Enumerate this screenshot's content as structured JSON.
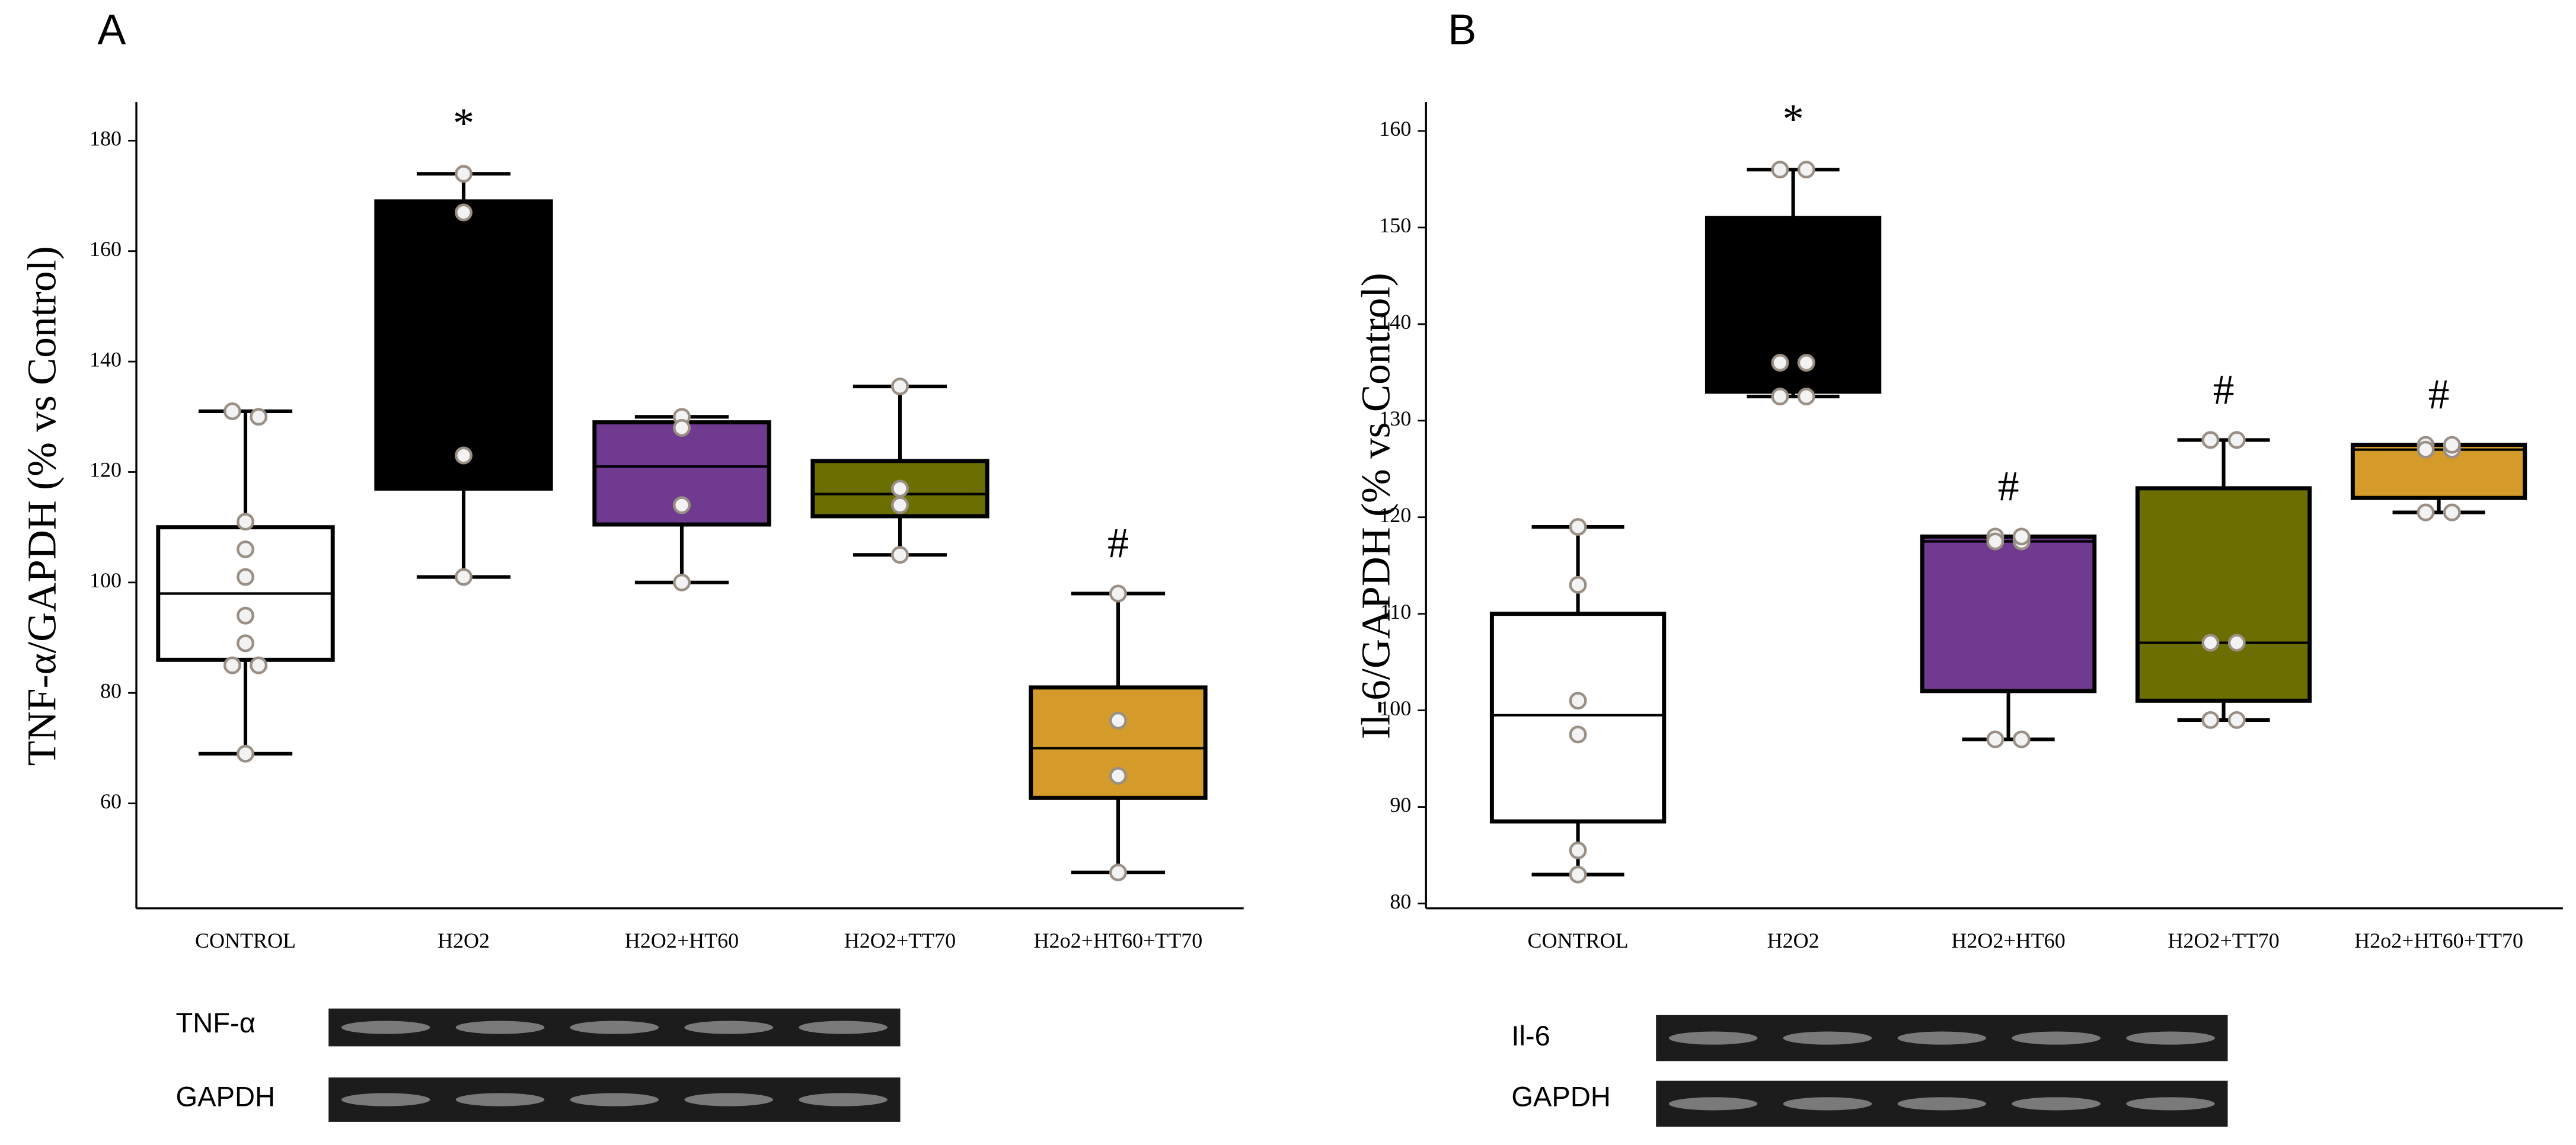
{
  "chart_data": [
    {
      "type": "box",
      "panel": "A",
      "ylabel": "TNF-α/GAPDH (% vs Control)",
      "categories": [
        "CONTROL",
        "H2O2",
        "H2O2+HT60",
        "H2O2+TT70",
        "H2o2+HT60+TT70"
      ],
      "colors": [
        "#ffffff",
        "#000000",
        "#6f3a8f",
        "#6b6e00",
        "#d49a2a"
      ],
      "boxes": [
        {
          "whislo": 69,
          "q1": 86,
          "med": 98,
          "q3": 110,
          "whishi": 131,
          "points": [
            131,
            130,
            111,
            106,
            101,
            94,
            89,
            85,
            85,
            69
          ]
        },
        {
          "whislo": 101,
          "q1": 117,
          "med": 145,
          "q3": 169,
          "whishi": 174,
          "points": [
            174,
            167,
            123,
            101
          ]
        },
        {
          "whislo": 100,
          "q1": 110.5,
          "med": 121,
          "q3": 129,
          "whishi": 130,
          "points": [
            130,
            128,
            114,
            100
          ]
        },
        {
          "whislo": 105,
          "q1": 112,
          "med": 116,
          "q3": 122,
          "whishi": 135.5,
          "points": [
            135.5,
            117,
            114,
            105
          ]
        },
        {
          "whislo": 47.5,
          "q1": 61,
          "med": 70,
          "q3": 81,
          "whishi": 98,
          "points": [
            98,
            75,
            65,
            47.5
          ]
        }
      ],
      "annotations": [
        null,
        "*",
        null,
        null,
        "#"
      ],
      "ylim": [
        41,
        187
      ],
      "yticks": [
        60,
        80,
        100,
        120,
        140,
        160,
        180
      ],
      "blot_labels": [
        "TNF-α",
        "GAPDH"
      ]
    },
    {
      "type": "box",
      "panel": "B",
      "ylabel": "Il-6/GAPDH (% vs Control)",
      "categories": [
        "CONTROL",
        "H2O2",
        "H2O2+HT60",
        "H2O2+TT70",
        "H2o2+HT60+TT70"
      ],
      "colors": [
        "#ffffff",
        "#000000",
        "#6f3a8f",
        "#6b6e00",
        "#d49a2a"
      ],
      "boxes": [
        {
          "whislo": 83,
          "q1": 88.5,
          "med": 99.5,
          "q3": 110,
          "whishi": 119,
          "points": [
            119,
            113,
            101,
            97.5,
            85.5,
            83
          ]
        },
        {
          "whislo": 132.5,
          "q1": 133,
          "med": 133,
          "q3": 151,
          "whishi": 156,
          "points": [
            156,
            156,
            136,
            136,
            132.5,
            132.5
          ]
        },
        {
          "whislo": 97,
          "q1": 102,
          "med": 117.5,
          "q3": 118,
          "whishi": 118,
          "points": [
            118,
            117.5,
            117.5,
            118,
            97,
            97
          ]
        },
        {
          "whislo": 99,
          "q1": 101,
          "med": 107,
          "q3": 123,
          "whishi": 128,
          "points": [
            128,
            128,
            107,
            107,
            99,
            99
          ]
        },
        {
          "whislo": 120.5,
          "q1": 122,
          "med": 127,
          "q3": 127.5,
          "whishi": 127.5,
          "points": [
            127.5,
            127,
            127,
            127.5,
            120.5,
            120.5
          ]
        }
      ],
      "annotations": [
        null,
        "*",
        "#",
        "#",
        "#"
      ],
      "ylim": [
        79.5,
        163
      ],
      "yticks": [
        80,
        90,
        100,
        110,
        120,
        130,
        140,
        150,
        160
      ],
      "blot_labels": [
        "Il-6",
        "GAPDH"
      ]
    }
  ]
}
